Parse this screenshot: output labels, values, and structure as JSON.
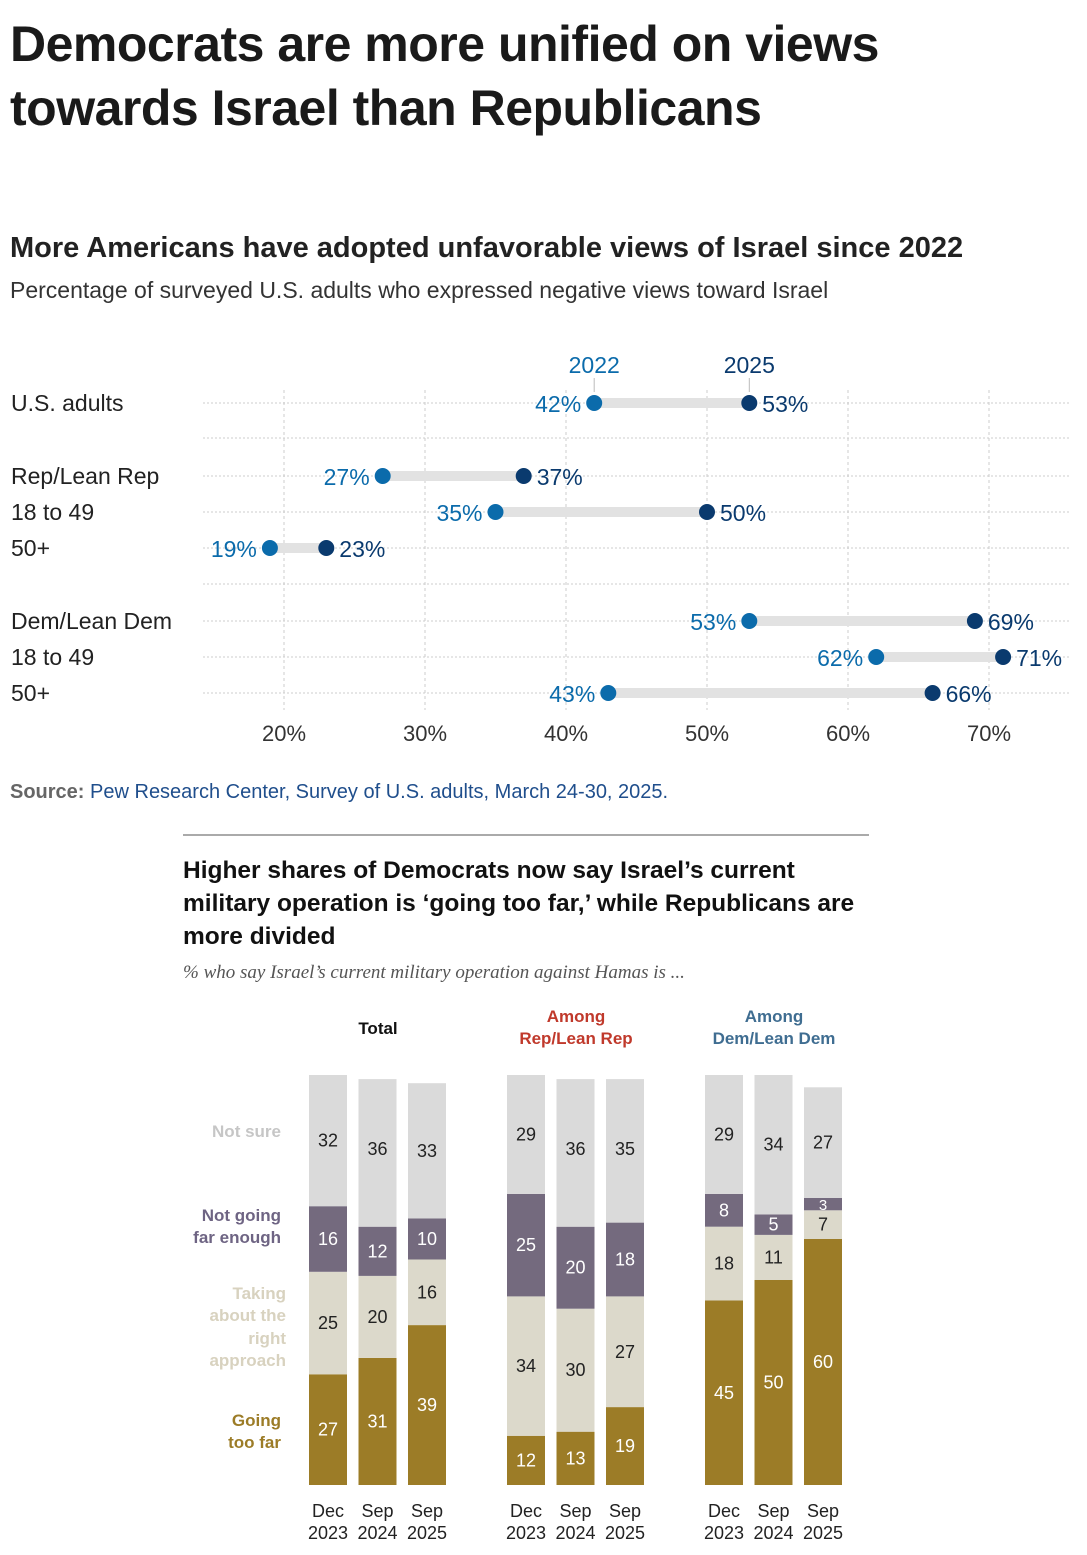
{
  "page_title": "Democrats are more unified on views towards Israel than Republicans",
  "chart_data": [
    {
      "type": "dot-range",
      "title": "More Americans have adopted unfavorable views of Israel since 2022",
      "subtitle": "Percentage of surveyed U.S. adults who expressed negative views toward Israel",
      "series_names": [
        "2022",
        "2025"
      ],
      "colors": {
        "2022": "#0b6bab",
        "2025": "#0a3a6e",
        "range": "#e2e2e2"
      },
      "rows": [
        {
          "label": "U.S. adults",
          "v2022": 42,
          "v2025": 53
        },
        {
          "label": "Rep/Lean Rep",
          "v2022": 27,
          "v2025": 37
        },
        {
          "label": "18 to 49",
          "v2022": 35,
          "v2025": 50
        },
        {
          "label": "50+",
          "v2022": 19,
          "v2025": 23
        },
        {
          "label": "Dem/Lean Dem",
          "v2022": 53,
          "v2025": 69
        },
        {
          "label": "18 to 49",
          "v2022": 62,
          "v2025": 71
        },
        {
          "label": "50+",
          "v2022": 43,
          "v2025": 66
        }
      ],
      "x_ticks": [
        "20%",
        "30%",
        "40%",
        "50%",
        "60%",
        "70%"
      ],
      "xlim": [
        20,
        70
      ],
      "grid": true,
      "source_label": "Source:",
      "source": "Pew Research Center, Survey of U.S. adults, March 24-30, 2025."
    },
    {
      "type": "stacked-bar",
      "title": "Higher shares of Democrats now say Israel’s current military operation is ‘going too far,’ while Republicans are more divided",
      "subtitle": "% who say Israel’s current military operation against Hamas is ...",
      "categories": [
        "Going too far",
        "Taking about the right approach",
        "Not going far enough",
        "Not sure"
      ],
      "category_labels": [
        [
          "Going",
          "too far"
        ],
        [
          "Taking",
          "about the",
          "right",
          "approach"
        ],
        [
          "Not going",
          "far enough"
        ],
        [
          "Not sure"
        ]
      ],
      "colors": [
        "#9c7c27",
        "#dcd9cb",
        "#746a7e",
        "#dadada"
      ],
      "label_colors": [
        "#9c7c27",
        "#d8d2bf",
        "#6e6483",
        "#c6c6c6"
      ],
      "groups": [
        {
          "title": [
            "Total"
          ],
          "title_color": "#111111",
          "bars": [
            {
              "date": [
                "Dec",
                "2023"
              ],
              "values": [
                27,
                25,
                16,
                32
              ]
            },
            {
              "date": [
                "Sep",
                "2024"
              ],
              "values": [
                31,
                20,
                12,
                36
              ]
            },
            {
              "date": [
                "Sep",
                "2025"
              ],
              "values": [
                39,
                16,
                10,
                33
              ]
            }
          ]
        },
        {
          "title": [
            "Among",
            "Rep/Lean Rep"
          ],
          "title_color": "#c0392b",
          "bars": [
            {
              "date": [
                "Dec",
                "2023"
              ],
              "values": [
                12,
                34,
                25,
                29
              ]
            },
            {
              "date": [
                "Sep",
                "2024"
              ],
              "values": [
                13,
                30,
                20,
                36
              ]
            },
            {
              "date": [
                "Sep",
                "2025"
              ],
              "values": [
                19,
                27,
                18,
                35
              ]
            }
          ]
        },
        {
          "title": [
            "Among",
            "Dem/Lean Dem"
          ],
          "title_color": "#3f6d91",
          "bars": [
            {
              "date": [
                "Dec",
                "2023"
              ],
              "values": [
                45,
                18,
                8,
                29
              ]
            },
            {
              "date": [
                "Sep",
                "2024"
              ],
              "values": [
                50,
                11,
                5,
                34
              ]
            },
            {
              "date": [
                "Sep",
                "2025"
              ],
              "values": [
                60,
                7,
                3,
                27
              ]
            }
          ]
        }
      ]
    }
  ]
}
